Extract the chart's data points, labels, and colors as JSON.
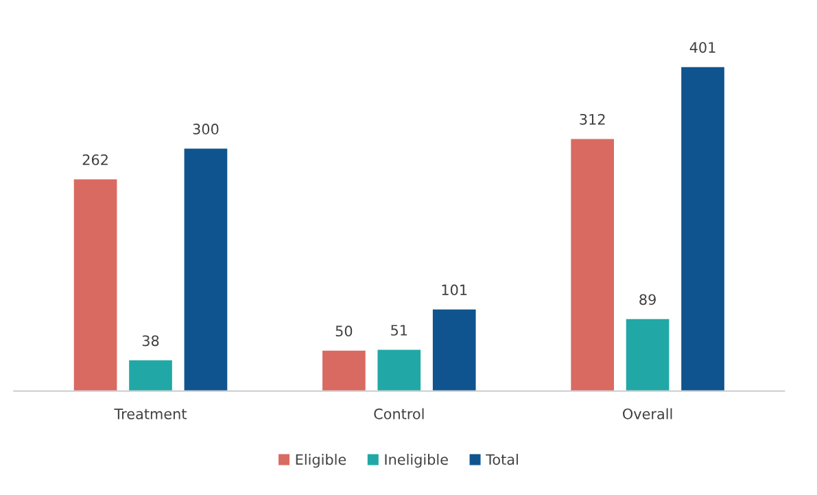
{
  "chart_data": {
    "type": "bar",
    "categories": [
      "Treatment",
      "Control",
      "Overall"
    ],
    "series": [
      {
        "name": "Eligible",
        "color": "#d96a61",
        "values": [
          262,
          50,
          312
        ]
      },
      {
        "name": "Ineligible",
        "color": "#21a8a6",
        "values": [
          38,
          51,
          89
        ]
      },
      {
        "name": "Total",
        "color": "#0f548e",
        "values": [
          300,
          101,
          401
        ]
      }
    ],
    "data_labels": true,
    "legend": "bottom"
  }
}
